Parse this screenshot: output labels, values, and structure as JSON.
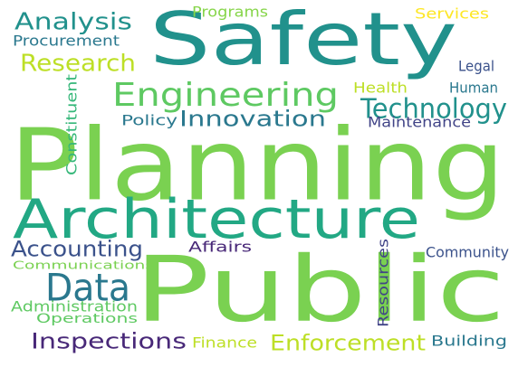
{
  "words": [
    {
      "key": "planning",
      "text": "Planning",
      "color": "#7ad151"
    },
    {
      "key": "public",
      "text": "Public",
      "color": "#7ad151"
    },
    {
      "key": "safety",
      "text": "Safety",
      "color": "#21918c"
    },
    {
      "key": "architecture",
      "text": "Architecture",
      "color": "#22a884"
    },
    {
      "key": "engineering",
      "text": "Engineering",
      "color": "#5ec962"
    },
    {
      "key": "data",
      "text": "Data",
      "color": "#2a788e"
    },
    {
      "key": "technology",
      "text": "Technology",
      "color": "#21918c"
    },
    {
      "key": "innovation",
      "text": "Innovation",
      "color": "#2a788e"
    },
    {
      "key": "analysis",
      "text": "Analysis",
      "color": "#21918c"
    },
    {
      "key": "research",
      "text": "Research",
      "color": "#bddf26"
    },
    {
      "key": "accounting",
      "text": "Accounting",
      "color": "#3b528b"
    },
    {
      "key": "inspections",
      "text": "Inspections",
      "color": "#482878"
    },
    {
      "key": "enforcement",
      "text": "Enforcement",
      "color": "#bddf26"
    },
    {
      "key": "procurement",
      "text": "Procurement",
      "color": "#2a788e"
    },
    {
      "key": "programs",
      "text": "Programs",
      "color": "#86d549"
    },
    {
      "key": "services",
      "text": "Services",
      "color": "#fde725"
    },
    {
      "key": "legal",
      "text": "Legal",
      "color": "#3b528b"
    },
    {
      "key": "health",
      "text": "Health",
      "color": "#bddf26"
    },
    {
      "key": "human",
      "text": "Human",
      "color": "#2a788e"
    },
    {
      "key": "policy",
      "text": "Policy",
      "color": "#2a788e"
    },
    {
      "key": "maintenance",
      "text": "Maintenance",
      "color": "#414487"
    },
    {
      "key": "constituent",
      "text": "Constituent",
      "color": "#35b779"
    },
    {
      "key": "affairs",
      "text": "Affairs",
      "color": "#482878"
    },
    {
      "key": "community",
      "text": "Community",
      "color": "#3b528b"
    },
    {
      "key": "communications",
      "text": "Communications",
      "color": "#7ad151"
    },
    {
      "key": "administration",
      "text": "Administration",
      "color": "#5ec962"
    },
    {
      "key": "operations",
      "text": "Operations",
      "color": "#5ec962"
    },
    {
      "key": "resources",
      "text": "Resources",
      "color": "#414487"
    },
    {
      "key": "finance",
      "text": "Finance",
      "color": "#bddf26"
    },
    {
      "key": "building",
      "text": "Building",
      "color": "#2a788e"
    }
  ]
}
